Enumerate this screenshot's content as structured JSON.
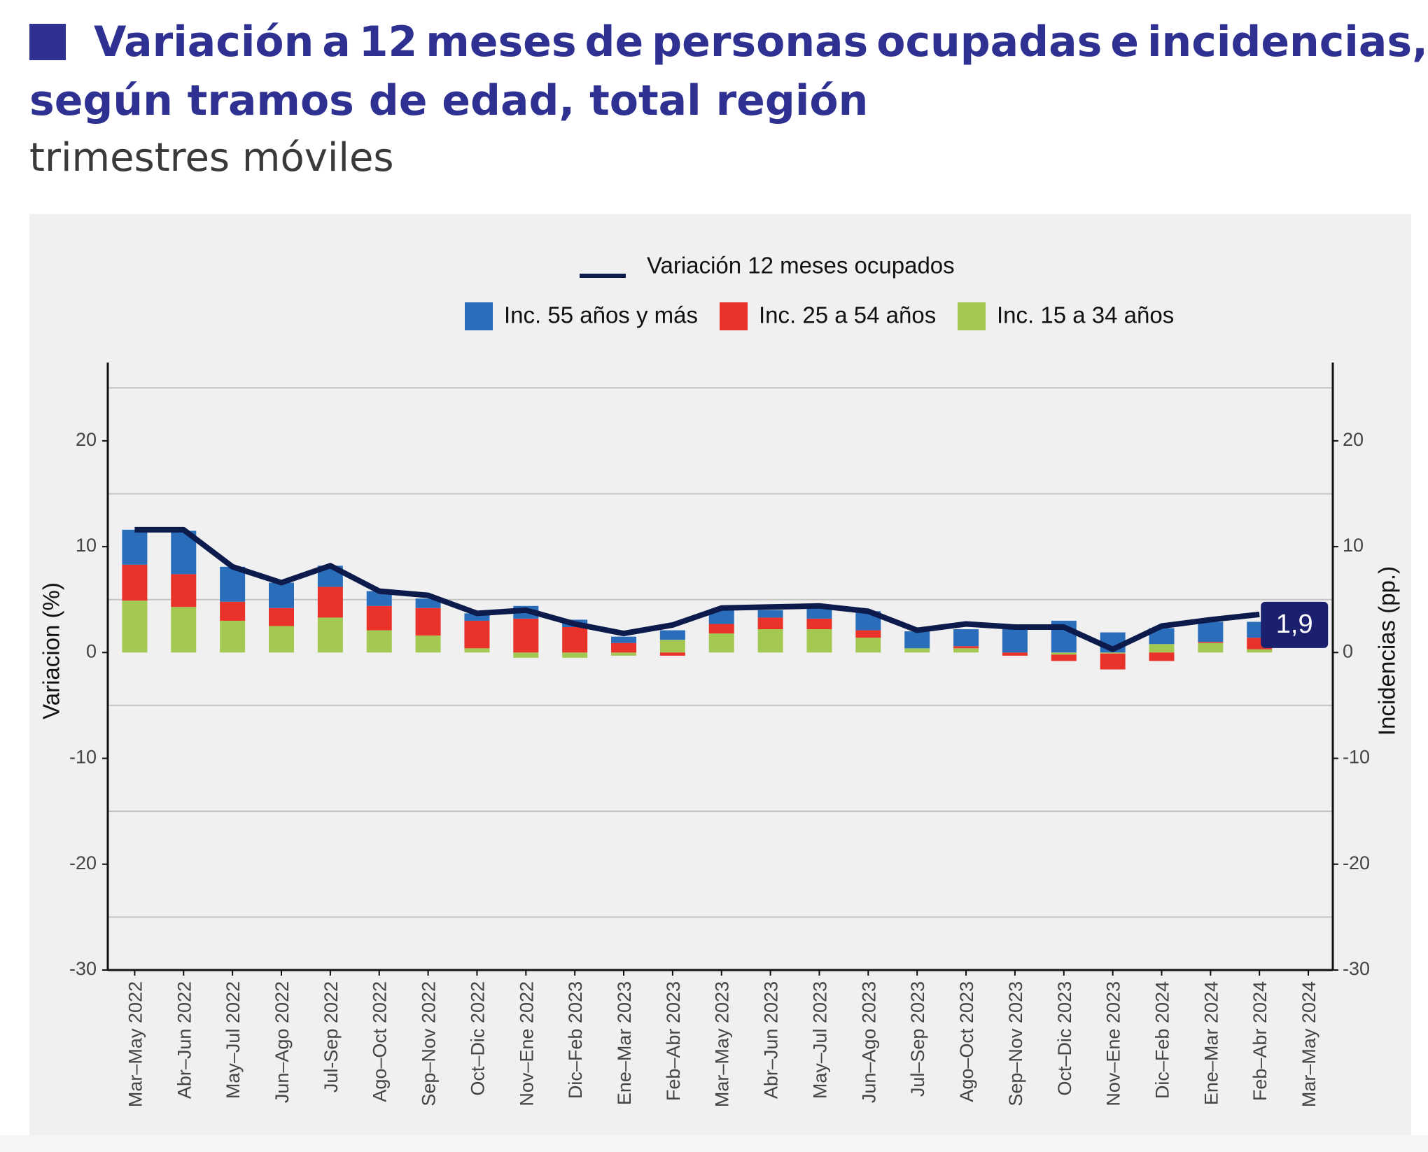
{
  "title": {
    "line1": "Variación a 12 meses de personas ocupadas e incidencias,",
    "line2": "según tramos de edad, total región",
    "subtitle": "trimestres móviles"
  },
  "colors": {
    "title": "#2e3192",
    "line": "#0d1b4c",
    "inc55": "#2a6ebb",
    "inc25": "#e8322a",
    "inc15": "#a4c952",
    "panel": "#f0f0f0"
  },
  "legend": {
    "line_label": "Variación 12 meses ocupados",
    "inc55_label": "Inc. 55 años y más",
    "inc25_label": "Inc. 25 a 54 años",
    "inc15_label": "Inc. 15 a 34 años"
  },
  "chart_data": {
    "type": "bar",
    "stacked": true,
    "categories": [
      "Mar–May 2022",
      "Abr–Jun 2022",
      "May–Jul 2022",
      "Jun–Ago 2022",
      "Jul-Sep 2022",
      "Ago–Oct 2022",
      "Sep–Nov 2022",
      "Oct–Dic 2022",
      "Nov–Ene 2022",
      "Dic–Feb 2023",
      "Ene–Mar 2023",
      "Feb–Abr 2023",
      "Mar–May 2023",
      "Abr–Jun 2023",
      "May–Jul 2023",
      "Jun–Ago 2023",
      "Jul–Sep 2023",
      "Ago–Oct 2023",
      "Sep–Nov 2023",
      "Oct–Dic 2023",
      "Nov–Ene 2023",
      "Dic–Feb 2024",
      "Ene–Mar 2024",
      "Feb–Abr 2024",
      "Mar–May 2024"
    ],
    "series": [
      {
        "name": "Inc. 15 a 34 años",
        "kind": "bar",
        "values": [
          4.9,
          4.3,
          3.0,
          2.5,
          3.3,
          2.1,
          1.6,
          0.4,
          -0.5,
          -0.5,
          -0.3,
          1.2,
          1.8,
          2.2,
          2.2,
          1.4,
          0.4,
          0.4,
          0.0,
          -0.2,
          -0.1,
          0.8,
          0.9,
          0.3,
          null
        ]
      },
      {
        "name": "Inc. 25 a 54 años",
        "kind": "bar",
        "values": [
          3.4,
          3.1,
          1.8,
          1.7,
          2.9,
          2.3,
          2.6,
          2.6,
          3.2,
          2.4,
          0.9,
          -0.3,
          0.9,
          1.1,
          1.0,
          0.7,
          0.0,
          0.2,
          -0.3,
          -0.6,
          -1.5,
          -0.8,
          0.1,
          1.1,
          null
        ]
      },
      {
        "name": "Inc. 55 años y más",
        "kind": "bar",
        "values": [
          3.3,
          4.1,
          3.3,
          2.4,
          2.0,
          1.4,
          0.9,
          0.7,
          1.2,
          0.7,
          0.6,
          0.9,
          1.4,
          0.7,
          1.1,
          1.8,
          1.6,
          1.6,
          2.2,
          3.0,
          1.9,
          1.5,
          1.9,
          1.5,
          null
        ]
      },
      {
        "name": "Variación 12 meses ocupados",
        "kind": "line",
        "values": [
          11.6,
          11.6,
          8.1,
          6.6,
          8.2,
          5.8,
          5.4,
          3.7,
          4.0,
          2.7,
          1.8,
          2.6,
          4.2,
          4.3,
          4.4,
          3.9,
          2.1,
          2.7,
          2.4,
          2.4,
          0.3,
          2.5,
          3.1,
          3.6,
          null
        ]
      }
    ],
    "last_value_label": "1,9",
    "ylabel_left": "Variacion (%)",
    "ylabel_right": "Incidencias (pp.)",
    "ylim": [
      -30,
      27
    ],
    "yticks": [
      20,
      10,
      0,
      -10,
      -20,
      -30
    ],
    "ytick_labels": [
      "20",
      "10",
      "0",
      "-10",
      "-20",
      "-30"
    ],
    "grid": true,
    "legend_position": "top"
  }
}
